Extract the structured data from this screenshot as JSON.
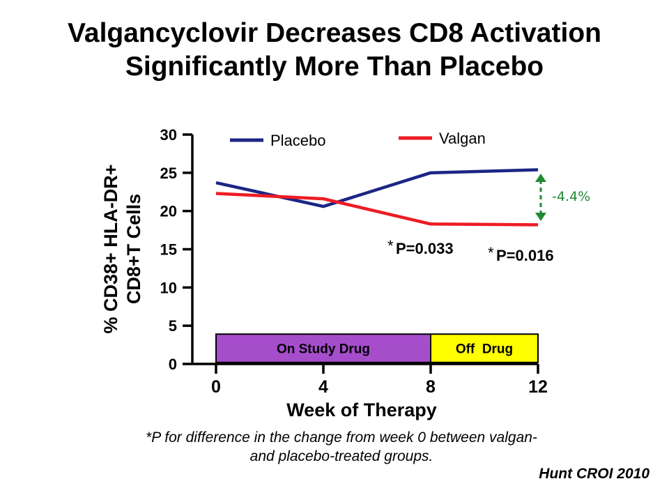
{
  "title": {
    "line1": "Valgancyclovir Decreases CD8 Activation",
    "line2": "Significantly More Than Placebo"
  },
  "chart_data": {
    "type": "line",
    "x": [
      0,
      4,
      8,
      12
    ],
    "xlim": [
      0,
      12
    ],
    "ylim": [
      0,
      30
    ],
    "yticks": [
      0,
      5,
      10,
      15,
      20,
      25,
      30
    ],
    "xticks": [
      0,
      4,
      8,
      12
    ],
    "xlabel": "Week of Therapy",
    "ylabel_line1": "% CD38+ HLA-DR+",
    "ylabel_line2": "CD8+T Cells",
    "legend_position": "top",
    "series": [
      {
        "name": "Placebo",
        "color": "#1c2585",
        "values": [
          23.7,
          20.6,
          25.0,
          25.4
        ]
      },
      {
        "name": "Valgan",
        "color": "#ee1c24",
        "values": [
          22.3,
          21.6,
          18.3,
          18.2
        ]
      }
    ],
    "annotations": {
      "p_week8": "P=0.033",
      "p_week12": "P=0.016",
      "asterisk": "*",
      "difference": "-4.4%",
      "difference_color": "#228833"
    },
    "phases": [
      {
        "label": "On Study Drug",
        "from": 0,
        "to": 8,
        "y_from": 0.2,
        "y_to": 3.9,
        "color": "#a64dcc"
      },
      {
        "label": "Off  Drug",
        "from": 8,
        "to": 12,
        "y_from": 0.2,
        "y_to": 3.9,
        "color": "#ffff00"
      }
    ]
  },
  "footnote": {
    "line1": "*P for difference in the change from week 0 between valgan-",
    "line2": "and placebo-treated groups."
  },
  "citation": "Hunt CROI 2010"
}
